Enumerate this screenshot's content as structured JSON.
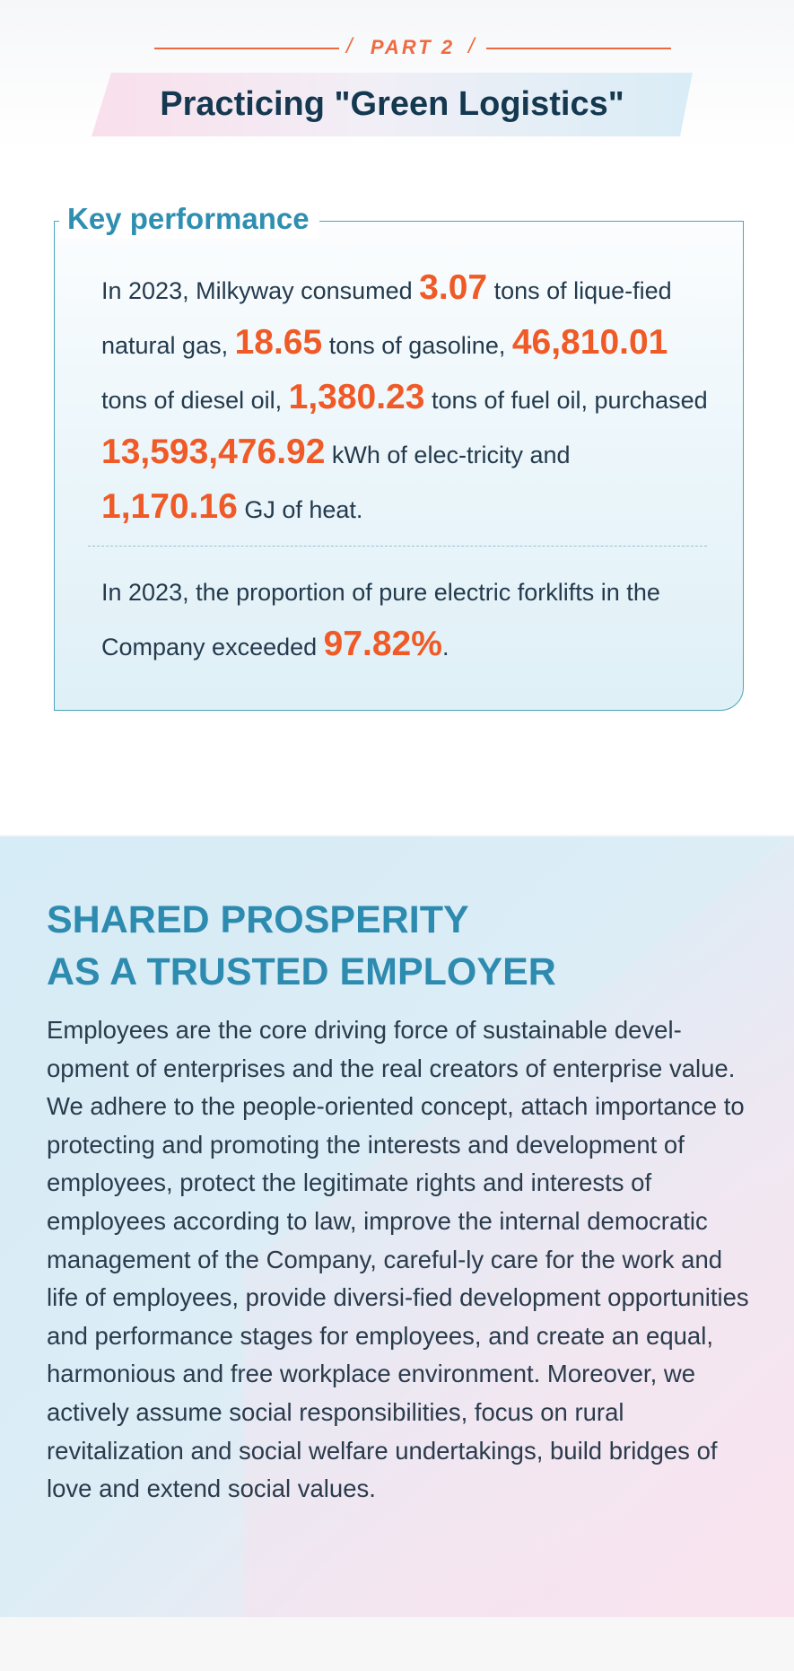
{
  "part": {
    "label": "PART 2",
    "slash": "/"
  },
  "page_title": "Practicing \"Green Logistics\"",
  "key_performance": {
    "title": "Key performance",
    "p1": {
      "t1": "In 2023, Milkyway consumed ",
      "n1": "3.07",
      "t2": " tons of lique-fied natural gas, ",
      "n2": "18.65",
      "t3": "  tons of gasoline, ",
      "n3": "46,810.01",
      "t4": " tons of diesel oil, ",
      "n4": "1,380.23",
      "t5": " tons of fuel oil, purchased ",
      "n5": "13,593,476.92",
      "t6": " kWh of elec-tricity and ",
      "n6": "1,170.16",
      "t7": " GJ of heat."
    },
    "p2": {
      "t1": "In 2023, the proportion of pure electric forklifts in the Company exceeded  ",
      "n1": "97.82%",
      "t2": "."
    }
  },
  "shared": {
    "heading_line1": "SHARED PROSPERITY",
    "heading_line2": "AS A TRUSTED EMPLOYER",
    "body": "Employees are the core driving force of sustainable devel-opment of enterprises and the real creators of enterprise value. We adhere to the people-oriented concept, attach importance to protecting and promoting the interests and development of employees, protect the legitimate rights and interests of employees according to law, improve the internal democratic management of the Company, careful-ly care for the work and life of employees, provide diversi-fied development opportunities and performance stages for employees, and create an equal, harmonious and free workplace environment. Moreover, we actively assume social responsibilities, focus on rural revitalization and social welfare undertakings, build bridges of love and extend social values."
  },
  "colors": {
    "accent_orange": "#ef5a26",
    "accent_blue": "#2e8bb0",
    "title_navy": "#14384f"
  }
}
